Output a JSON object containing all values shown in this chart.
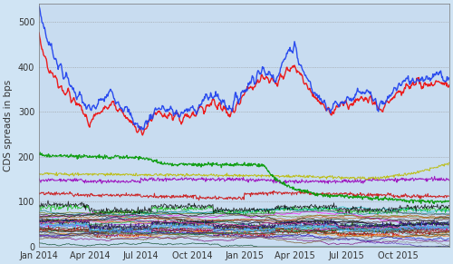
{
  "ylabel": "CDS spreads in bps",
  "ylim": [
    0,
    540
  ],
  "yticks": [
    0,
    100,
    200,
    300,
    400,
    500
  ],
  "background_color": "#c8dcf0",
  "fig_background": "#d0e4f4",
  "n_days": 730
}
